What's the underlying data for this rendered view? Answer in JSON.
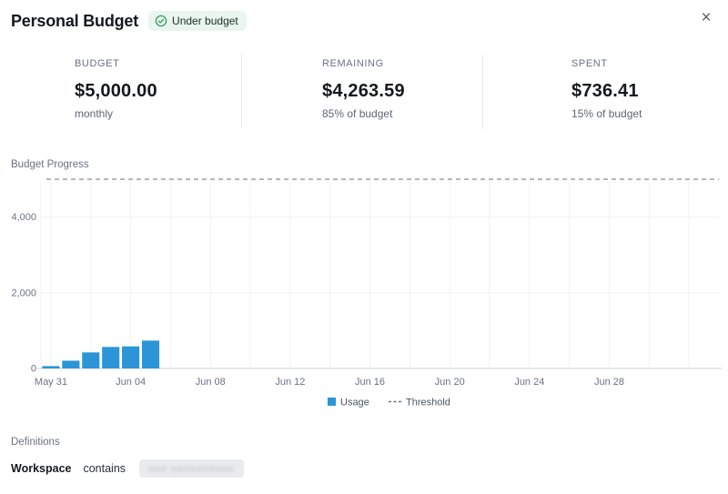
{
  "header": {
    "title": "Personal Budget",
    "status_badge": {
      "label": "Under budget",
      "icon": "check-circle-icon"
    },
    "close_label": "×"
  },
  "stats": {
    "columns": [
      {
        "label": "BUDGET",
        "value": "$5,000.00",
        "sub": "monthly"
      },
      {
        "label": "REMAINING",
        "value": "$4,263.59",
        "sub": "85% of budget"
      },
      {
        "label": "SPENT",
        "value": "$736.41",
        "sub": "15% of budget"
      }
    ]
  },
  "chart": {
    "section_label": "Budget Progress"
  },
  "chart_data": {
    "type": "bar",
    "title": "Budget Progress",
    "series_name": "Usage",
    "bars": [
      {
        "date": "May 31",
        "value": 62
      },
      {
        "date": "Jun 01",
        "value": 205
      },
      {
        "date": "Jun 02",
        "value": 424
      },
      {
        "date": "Jun 03",
        "value": 568
      },
      {
        "date": "Jun 04",
        "value": 584
      },
      {
        "date": "Jun 05",
        "value": 736
      }
    ],
    "threshold": {
      "label": "Threshold",
      "value": 5000
    },
    "y_ticks": [
      {
        "value": 0,
        "label": "0"
      },
      {
        "value": 2000,
        "label": "2,000"
      },
      {
        "value": 4000,
        "label": "4,000"
      }
    ],
    "x_ticks": [
      {
        "day": 0,
        "label": "May 31"
      },
      {
        "day": 4,
        "label": "Jun 04"
      },
      {
        "day": 8,
        "label": "Jun 08"
      },
      {
        "day": 12,
        "label": "Jun 12"
      },
      {
        "day": 16,
        "label": "Jun 16"
      },
      {
        "day": 20,
        "label": "Jun 20"
      },
      {
        "day": 24,
        "label": "Jun 24"
      },
      {
        "day": 28,
        "label": "Jun 28"
      }
    ],
    "axis": {
      "ymax": 5000,
      "days_shown": 34,
      "vertical_grid_every_days": 2
    },
    "legend_position": "bottom-center",
    "bar_color": "#2b95d8"
  },
  "definitions": {
    "section_label": "Definitions",
    "rows": [
      {
        "term": "Workspace",
        "operator": "contains",
        "value_redacted": "●●● ●●●●●●●●●●"
      }
    ]
  },
  "colors": {
    "accent_blue": "#2b95d8",
    "badge_bg": "#e9f5ee",
    "badge_icon_green": "#2f9e63",
    "text_primary": "#15191e",
    "text_secondary": "#6b7280",
    "divider": "#e7e9ec",
    "gridline": "#f0f2f4",
    "axis_line": "#d8dcdf",
    "threshold_dash": "#9aa0a6"
  }
}
